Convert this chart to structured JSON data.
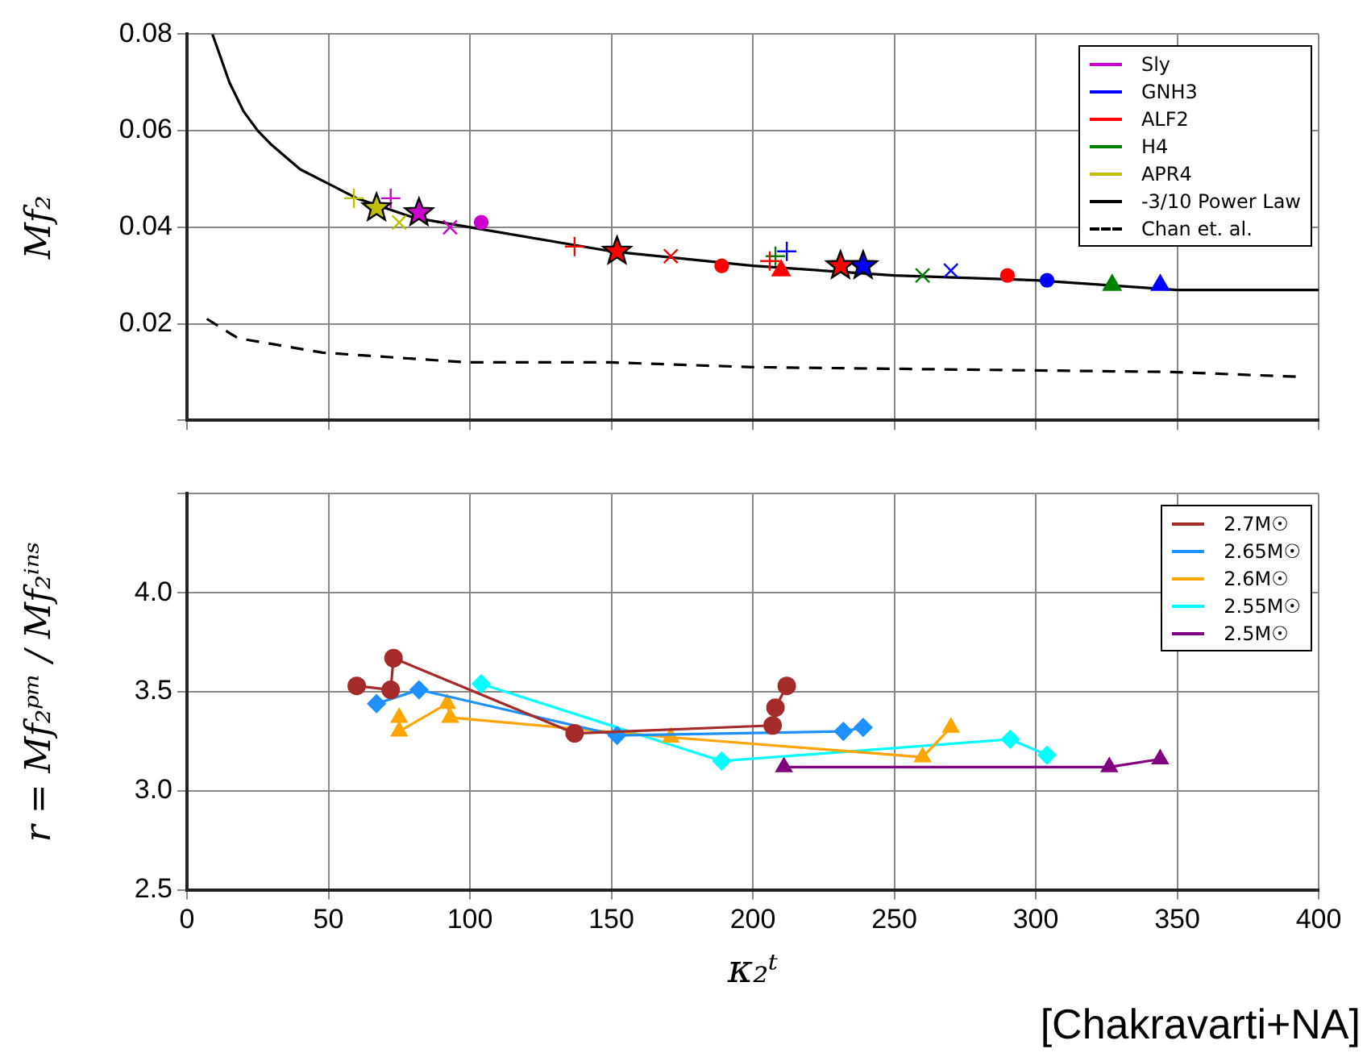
{
  "chart_data": [
    {
      "type": "scatter",
      "ylabel": "Mf₂",
      "xlim": [
        0,
        400
      ],
      "xticks": [
        0,
        50,
        100,
        150,
        200,
        250,
        300,
        350,
        400
      ],
      "ylim": [
        0,
        0.08
      ],
      "yticks": [
        {
          "value": 0,
          "label": null
        },
        0.02,
        0.04,
        0.06,
        0.08
      ],
      "tick_labels": "y",
      "grid": true,
      "legend": "top right",
      "series": [
        {
          "name": "Sly",
          "color": "#cc00cc",
          "marker": "cross",
          "x": [
            72
          ],
          "values": [
            0.046
          ]
        },
        {
          "color": "#cc00cc",
          "marker": "star",
          "x": [
            82
          ],
          "values": [
            0.043
          ]
        },
        {
          "color": "#cc00cc",
          "marker": "x",
          "x": [
            93
          ],
          "values": [
            0.04
          ]
        },
        {
          "color": "#cc00cc",
          "marker": "circle",
          "x": [
            104
          ],
          "values": [
            0.041
          ]
        },
        {
          "name": "GNH3",
          "color": "#0000ff",
          "marker": "cross",
          "x": [
            212
          ],
          "values": [
            0.035
          ]
        },
        {
          "color": "#0000ff",
          "marker": "star",
          "x": [
            239
          ],
          "values": [
            0.032
          ]
        },
        {
          "color": "#0000ff",
          "marker": "x",
          "x": [
            270
          ],
          "values": [
            0.031
          ]
        },
        {
          "color": "#0000ff",
          "marker": "circle",
          "x": [
            304
          ],
          "values": [
            0.029
          ]
        },
        {
          "color": "#0000ff",
          "marker": "triangle",
          "x": [
            344
          ],
          "values": [
            0.028
          ]
        },
        {
          "name": "ALF2",
          "color": "#ff0000",
          "marker": "cross",
          "x": [
            137,
            206
          ],
          "values": [
            0.036,
            0.033
          ]
        },
        {
          "color": "#ff0000",
          "marker": "star",
          "x": [
            152,
            231
          ],
          "values": [
            0.035,
            0.032
          ]
        },
        {
          "color": "#ff0000",
          "marker": "x",
          "x": [
            171
          ],
          "values": [
            0.034
          ]
        },
        {
          "color": "#ff0000",
          "marker": "circle",
          "x": [
            189,
            290
          ],
          "values": [
            0.032,
            0.03
          ]
        },
        {
          "color": "#ff0000",
          "marker": "triangle",
          "x": [
            210
          ],
          "values": [
            0.031
          ]
        },
        {
          "name": "H4",
          "color": "#008000",
          "marker": "cross",
          "x": [
            208
          ],
          "values": [
            0.034
          ]
        },
        {
          "color": "#008000",
          "marker": "x",
          "x": [
            260
          ],
          "values": [
            0.03
          ]
        },
        {
          "color": "#008000",
          "marker": "triangle",
          "x": [
            327
          ],
          "values": [
            0.028
          ]
        },
        {
          "name": "APR4",
          "color": "#bfbf00",
          "marker": "cross",
          "x": [
            59
          ],
          "values": [
            0.046
          ]
        },
        {
          "color": "#bfbf00",
          "marker": "star",
          "x": [
            67
          ],
          "values": [
            0.044
          ]
        },
        {
          "color": "#bfbf00",
          "marker": "x",
          "x": [
            75
          ],
          "values": [
            0.041
          ]
        },
        {
          "name": "-3/10 Power Law",
          "type": "line",
          "color": "#000000",
          "marker": "none",
          "line_style": "solid",
          "x": [
            9,
            12,
            15,
            20,
            25,
            30,
            40,
            50,
            60,
            80,
            100,
            150,
            200,
            250,
            300,
            350,
            400
          ],
          "values": [
            0.08,
            0.075,
            0.07,
            0.064,
            0.06,
            0.057,
            0.052,
            0.049,
            0.046,
            0.042,
            0.04,
            0.035,
            0.032,
            0.03,
            0.029,
            0.027,
            0.027
          ]
        },
        {
          "name": "Chan et. al.",
          "type": "line",
          "color": "#000000",
          "marker": "none",
          "line_style": "dashed",
          "x": [
            7,
            18,
            48,
            99,
            149,
            200,
            348,
            393
          ],
          "values": [
            0.021,
            0.017,
            0.014,
            0.012,
            0.012,
            0.011,
            0.01,
            0.009
          ]
        }
      ]
    },
    {
      "type": "line",
      "xlabel": "κ₂ᵗ",
      "ylabel": "r = Mf₂ᵖᵐ / Mf₂ⁱⁿˢ",
      "xlim": [
        0,
        400
      ],
      "xticks": [
        0,
        50,
        100,
        150,
        200,
        250,
        300,
        350,
        400
      ],
      "ylim": [
        2.5,
        4.5
      ],
      "yticks": [
        2.5,
        {
          "value": 3,
          "label": "3.0"
        },
        3.5,
        {
          "value": 4,
          "label": "4.0"
        },
        {
          "value": 4.5,
          "label": null
        }
      ],
      "grid": true,
      "legend": "top right",
      "annotations": [
        "[Chakravarti+NA]"
      ],
      "series": [
        {
          "name": "2.7M☉",
          "color": "#a52a2a",
          "marker": "circle",
          "x": [
            60,
            72,
            73,
            137,
            207,
            208,
            212
          ],
          "values": [
            3.53,
            3.51,
            3.67,
            3.29,
            3.33,
            3.42,
            3.53
          ]
        },
        {
          "name": "2.65M☉",
          "color": "#1e90ff",
          "marker": "diamond",
          "x": [
            67,
            82,
            152,
            232,
            239
          ],
          "values": [
            3.44,
            3.51,
            3.28,
            3.3,
            3.32
          ]
        },
        {
          "name": "2.6M☉",
          "color": "#ffa500",
          "marker": "triangle",
          "x": [
            75,
            75,
            92,
            93,
            171,
            260,
            270
          ],
          "values": [
            3.37,
            3.3,
            3.44,
            3.37,
            3.27,
            3.17,
            3.32
          ]
        },
        {
          "name": "2.55M☉",
          "color": "#00ffff",
          "marker": "diamond",
          "x": [
            104,
            189,
            291,
            304
          ],
          "values": [
            3.54,
            3.15,
            3.26,
            3.18
          ]
        },
        {
          "name": "2.5M☉",
          "color": "#800080",
          "marker": "triangle",
          "x": [
            211,
            326,
            344
          ],
          "values": [
            3.12,
            3.12,
            3.16
          ]
        }
      ]
    }
  ]
}
